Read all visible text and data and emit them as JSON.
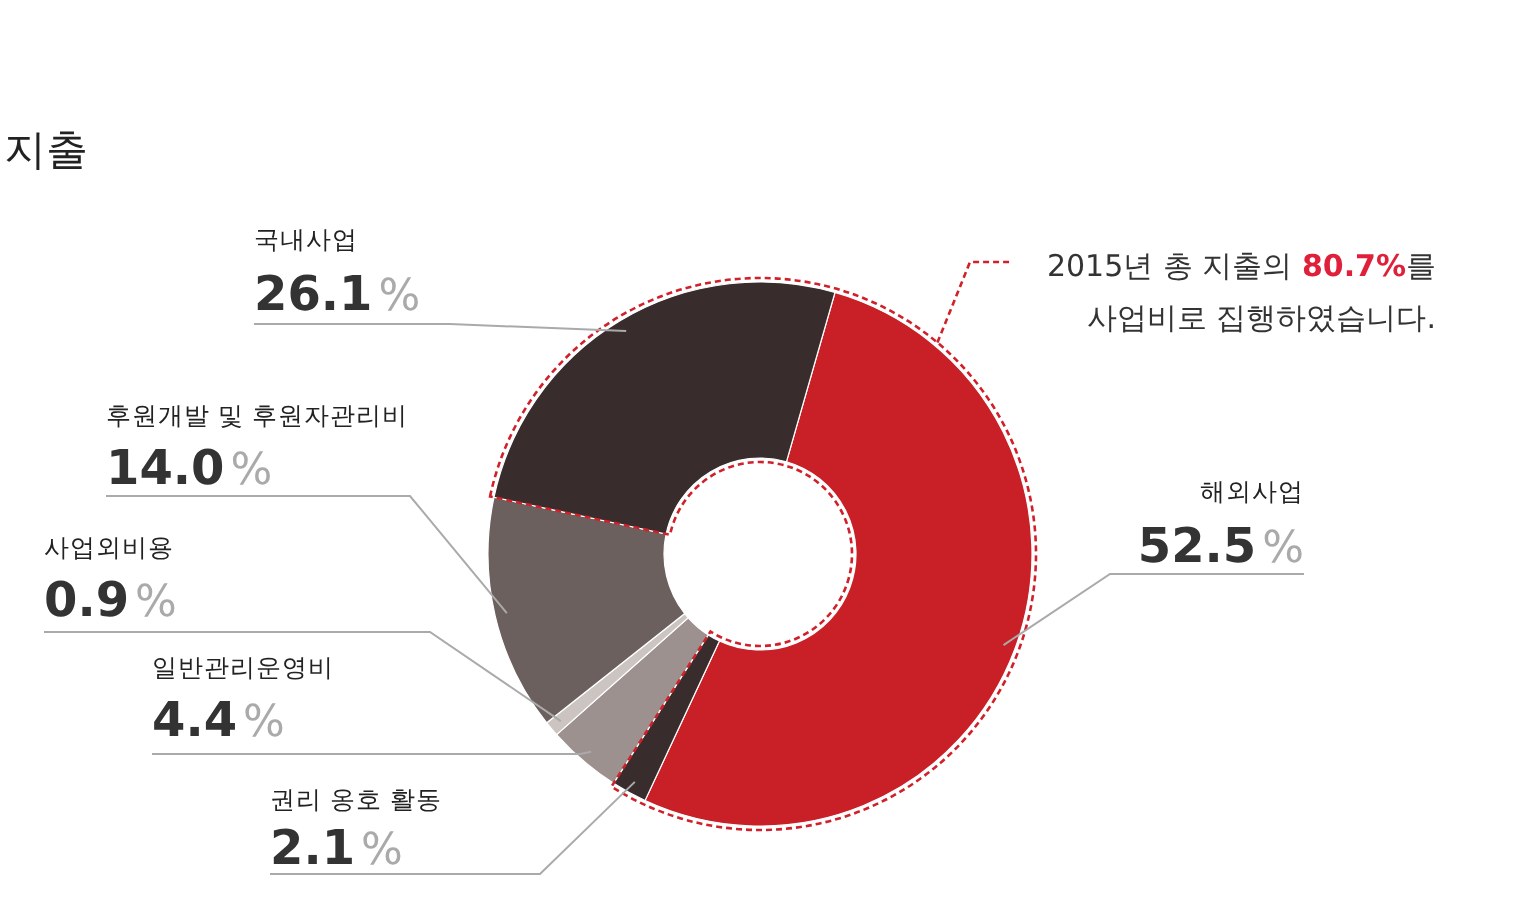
{
  "chart_data": {
    "type": "donut",
    "title": "지출",
    "categories": [
      "해외사업",
      "권리 옹호 활동",
      "일반관리운영비",
      "사업외비용",
      "후원개발 및 후원자관리비",
      "국내사업"
    ],
    "values": [
      52.5,
      2.1,
      4.4,
      0.9,
      14.0,
      26.1
    ],
    "value_labels": [
      "52.5%",
      "2.1%",
      "4.4%",
      "0.9%",
      "14.0%",
      "26.1%"
    ],
    "colors": [
      "#c82026",
      "#382d2c",
      "#9c918e",
      "#cbc4c1",
      "#6b605d",
      "#382d2c"
    ],
    "annotations": [
      "2015년 총 지출의 80.7%를\n사업비로 집행하였습니다."
    ]
  }
}
